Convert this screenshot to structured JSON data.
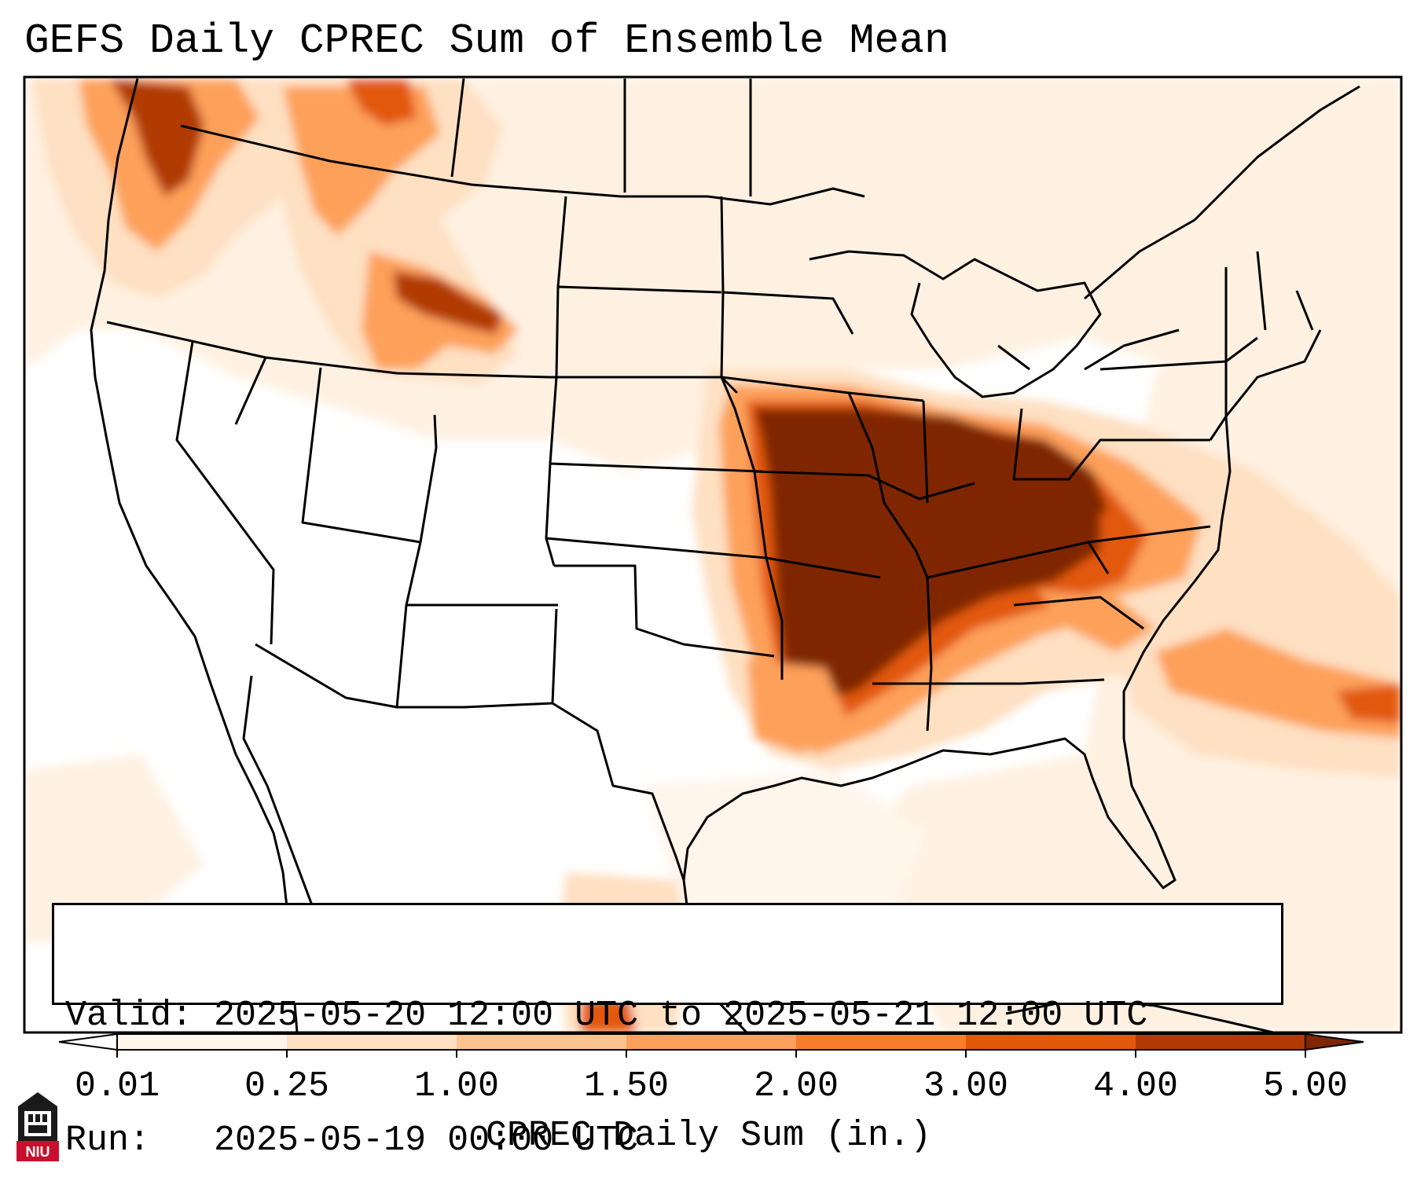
{
  "title": "GEFS Daily CPREC Sum of Ensemble Mean",
  "info": {
    "valid_label": "Valid:",
    "valid_value": "2025-05-20 12:00 UTC to 2025-05-21 12:00 UTC",
    "run_label": "Run:",
    "run_value": "2025-05-19 00:00 UTC"
  },
  "colorbar": {
    "title": "CPREC Daily Sum (in.)",
    "ticks": [
      "0.01",
      "0.25",
      "1.00",
      "1.50",
      "2.00",
      "3.00",
      "4.00",
      "5.00"
    ],
    "bin_colors": [
      "#fff5eb",
      "#fee0c2",
      "#fdc38e",
      "#fda05a",
      "#f87d2b",
      "#e2580b",
      "#b13b03",
      "#7f2704"
    ],
    "extend_low_color": "#ffffff",
    "extend_high_color": "#7f2704"
  },
  "logo": {
    "text": "NIU",
    "color": "#c8102e"
  }
}
